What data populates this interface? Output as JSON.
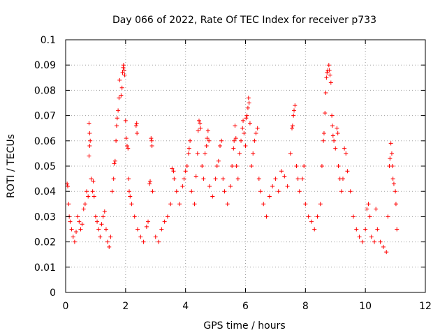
{
  "chart_data": {
    "type": "scatter",
    "title": "Day 066 of 2022, Rate Of TEC Index for receiver p733",
    "xlabel": "GPS time / hours",
    "ylabel": "ROTI / TECUs",
    "xlim": [
      0,
      12
    ],
    "ylim": [
      0,
      0.1
    ],
    "xticks": [
      "0",
      "2",
      "4",
      "6",
      "8",
      "10",
      "12"
    ],
    "yticks": [
      "0",
      "0.01",
      "0.02",
      "0.03",
      "0.04",
      "0.05",
      "0.06",
      "0.07",
      "0.08",
      "0.09",
      "0.1"
    ],
    "grid": true,
    "marker": "plus",
    "color": "#ff0000",
    "series": [
      {
        "points": [
          [
            0.05,
            0.043
          ],
          [
            0.07,
            0.042
          ],
          [
            0.1,
            0.035
          ],
          [
            0.12,
            0.03
          ],
          [
            0.15,
            0.028
          ],
          [
            0.2,
            0.025
          ],
          [
            0.25,
            0.022
          ],
          [
            0.3,
            0.02
          ],
          [
            0.35,
            0.024
          ],
          [
            0.4,
            0.03
          ],
          [
            0.45,
            0.028
          ],
          [
            0.5,
            0.025
          ],
          [
            0.55,
            0.027
          ],
          [
            0.6,
            0.033
          ],
          [
            0.65,
            0.035
          ],
          [
            0.7,
            0.04
          ],
          [
            0.75,
            0.038
          ],
          [
            0.78,
            0.067
          ],
          [
            0.8,
            0.063
          ],
          [
            0.82,
            0.06
          ],
          [
            0.8,
            0.058
          ],
          [
            0.78,
            0.054
          ],
          [
            0.85,
            0.045
          ],
          [
            0.9,
            0.04
          ],
          [
            0.92,
            0.044
          ],
          [
            0.95,
            0.038
          ],
          [
            1.0,
            0.03
          ],
          [
            1.05,
            0.028
          ],
          [
            1.1,
            0.025
          ],
          [
            1.15,
            0.022
          ],
          [
            1.2,
            0.027
          ],
          [
            1.25,
            0.03
          ],
          [
            1.3,
            0.032
          ],
          [
            1.35,
            0.025
          ],
          [
            1.4,
            0.02
          ],
          [
            1.45,
            0.018
          ],
          [
            1.5,
            0.022
          ],
          [
            1.55,
            0.04
          ],
          [
            1.6,
            0.045
          ],
          [
            1.62,
            0.051
          ],
          [
            1.65,
            0.052
          ],
          [
            1.68,
            0.06
          ],
          [
            1.7,
            0.066
          ],
          [
            1.72,
            0.069
          ],
          [
            1.75,
            0.072
          ],
          [
            1.78,
            0.077
          ],
          [
            1.8,
            0.084
          ],
          [
            1.85,
            0.078
          ],
          [
            1.88,
            0.081
          ],
          [
            1.9,
            0.087
          ],
          [
            1.92,
            0.089
          ],
          [
            1.93,
            0.09
          ],
          [
            1.95,
            0.088
          ],
          [
            1.97,
            0.086
          ],
          [
            2.0,
            0.068
          ],
          [
            2.02,
            0.061
          ],
          [
            2.05,
            0.058
          ],
          [
            2.08,
            0.057
          ],
          [
            2.1,
            0.045
          ],
          [
            2.12,
            0.04
          ],
          [
            2.15,
            0.038
          ],
          [
            2.2,
            0.035
          ],
          [
            2.3,
            0.03
          ],
          [
            2.35,
            0.066
          ],
          [
            2.37,
            0.067
          ],
          [
            2.38,
            0.063
          ],
          [
            2.4,
            0.025
          ],
          [
            2.5,
            0.022
          ],
          [
            2.6,
            0.02
          ],
          [
            2.7,
            0.026
          ],
          [
            2.75,
            0.028
          ],
          [
            2.8,
            0.043
          ],
          [
            2.82,
            0.044
          ],
          [
            2.85,
            0.061
          ],
          [
            2.87,
            0.06
          ],
          [
            2.88,
            0.058
          ],
          [
            2.9,
            0.04
          ],
          [
            3.0,
            0.022
          ],
          [
            3.1,
            0.02
          ],
          [
            3.2,
            0.025
          ],
          [
            3.3,
            0.028
          ],
          [
            3.4,
            0.03
          ],
          [
            3.5,
            0.035
          ],
          [
            3.55,
            0.049
          ],
          [
            3.6,
            0.048
          ],
          [
            3.62,
            0.045
          ],
          [
            3.7,
            0.04
          ],
          [
            3.8,
            0.035
          ],
          [
            3.9,
            0.042
          ],
          [
            3.95,
            0.045
          ],
          [
            4.0,
            0.048
          ],
          [
            4.05,
            0.05
          ],
          [
            4.1,
            0.055
          ],
          [
            4.12,
            0.057
          ],
          [
            4.15,
            0.06
          ],
          [
            4.2,
            0.04
          ],
          [
            4.3,
            0.035
          ],
          [
            4.35,
            0.046
          ],
          [
            4.4,
            0.055
          ],
          [
            4.42,
            0.064
          ],
          [
            4.45,
            0.068
          ],
          [
            4.48,
            0.067
          ],
          [
            4.5,
            0.065
          ],
          [
            4.55,
            0.05
          ],
          [
            4.6,
            0.045
          ],
          [
            4.65,
            0.055
          ],
          [
            4.7,
            0.058
          ],
          [
            4.72,
            0.061
          ],
          [
            4.75,
            0.064
          ],
          [
            4.78,
            0.06
          ],
          [
            4.8,
            0.042
          ],
          [
            4.9,
            0.038
          ],
          [
            5.0,
            0.045
          ],
          [
            5.05,
            0.05
          ],
          [
            5.1,
            0.052
          ],
          [
            5.15,
            0.058
          ],
          [
            5.2,
            0.06
          ],
          [
            5.25,
            0.045
          ],
          [
            5.3,
            0.04
          ],
          [
            5.4,
            0.035
          ],
          [
            5.5,
            0.042
          ],
          [
            5.55,
            0.05
          ],
          [
            5.6,
            0.057
          ],
          [
            5.62,
            0.06
          ],
          [
            5.65,
            0.066
          ],
          [
            5.68,
            0.061
          ],
          [
            5.7,
            0.05
          ],
          [
            5.75,
            0.045
          ],
          [
            5.8,
            0.055
          ],
          [
            5.85,
            0.06
          ],
          [
            5.9,
            0.065
          ],
          [
            5.92,
            0.068
          ],
          [
            5.95,
            0.063
          ],
          [
            6.0,
            0.058
          ],
          [
            6.02,
            0.069
          ],
          [
            6.05,
            0.07
          ],
          [
            6.08,
            0.073
          ],
          [
            6.1,
            0.077
          ],
          [
            6.12,
            0.075
          ],
          [
            6.15,
            0.067
          ],
          [
            6.2,
            0.05
          ],
          [
            6.25,
            0.055
          ],
          [
            6.3,
            0.06
          ],
          [
            6.35,
            0.063
          ],
          [
            6.4,
            0.065
          ],
          [
            6.45,
            0.045
          ],
          [
            6.5,
            0.04
          ],
          [
            6.6,
            0.035
          ],
          [
            6.7,
            0.03
          ],
          [
            6.8,
            0.038
          ],
          [
            6.9,
            0.042
          ],
          [
            7.0,
            0.045
          ],
          [
            7.1,
            0.04
          ],
          [
            7.2,
            0.048
          ],
          [
            7.3,
            0.046
          ],
          [
            7.4,
            0.042
          ],
          [
            7.5,
            0.055
          ],
          [
            7.55,
            0.065
          ],
          [
            7.57,
            0.066
          ],
          [
            7.6,
            0.07
          ],
          [
            7.62,
            0.072
          ],
          [
            7.65,
            0.074
          ],
          [
            7.7,
            0.05
          ],
          [
            7.75,
            0.045
          ],
          [
            7.8,
            0.04
          ],
          [
            7.9,
            0.045
          ],
          [
            7.95,
            0.05
          ],
          [
            8.0,
            0.035
          ],
          [
            8.1,
            0.03
          ],
          [
            8.2,
            0.028
          ],
          [
            8.3,
            0.025
          ],
          [
            8.4,
            0.03
          ],
          [
            8.5,
            0.035
          ],
          [
            8.55,
            0.05
          ],
          [
            8.6,
            0.06
          ],
          [
            8.62,
            0.063
          ],
          [
            8.65,
            0.071
          ],
          [
            8.68,
            0.079
          ],
          [
            8.7,
            0.085
          ],
          [
            8.72,
            0.087
          ],
          [
            8.75,
            0.088
          ],
          [
            8.78,
            0.09
          ],
          [
            8.8,
            0.088
          ],
          [
            8.82,
            0.086
          ],
          [
            8.85,
            0.083
          ],
          [
            8.88,
            0.07
          ],
          [
            8.9,
            0.066
          ],
          [
            8.92,
            0.062
          ],
          [
            8.95,
            0.06
          ],
          [
            9.0,
            0.057
          ],
          [
            9.05,
            0.065
          ],
          [
            9.08,
            0.063
          ],
          [
            9.1,
            0.05
          ],
          [
            9.15,
            0.045
          ],
          [
            9.2,
            0.04
          ],
          [
            9.25,
            0.045
          ],
          [
            9.3,
            0.057
          ],
          [
            9.35,
            0.055
          ],
          [
            9.4,
            0.048
          ],
          [
            9.5,
            0.04
          ],
          [
            9.6,
            0.03
          ],
          [
            9.7,
            0.025
          ],
          [
            9.8,
            0.022
          ],
          [
            9.9,
            0.02
          ],
          [
            10.0,
            0.025
          ],
          [
            10.05,
            0.033
          ],
          [
            10.1,
            0.035
          ],
          [
            10.15,
            0.03
          ],
          [
            10.2,
            0.022
          ],
          [
            10.3,
            0.02
          ],
          [
            10.35,
            0.033
          ],
          [
            10.4,
            0.025
          ],
          [
            10.5,
            0.02
          ],
          [
            10.6,
            0.018
          ],
          [
            10.7,
            0.016
          ],
          [
            10.75,
            0.03
          ],
          [
            10.8,
            0.05
          ],
          [
            10.82,
            0.053
          ],
          [
            10.85,
            0.059
          ],
          [
            10.88,
            0.055
          ],
          [
            10.9,
            0.05
          ],
          [
            10.92,
            0.045
          ],
          [
            10.95,
            0.043
          ],
          [
            11.0,
            0.04
          ],
          [
            11.02,
            0.035
          ],
          [
            11.05,
            0.025
          ]
        ]
      }
    ]
  }
}
